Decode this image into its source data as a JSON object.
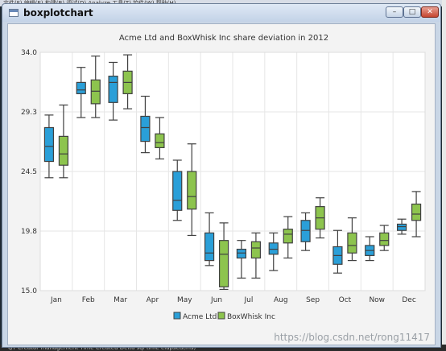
{
  "window": {
    "title": "boxplotchart",
    "buttons": {
      "minimize": "–",
      "maximize": "□",
      "close": "✕"
    }
  },
  "background": {
    "top_text": "文件(F)   编辑(E)   构建(B)   调试(D)   Analyze   工具(T)   控件(W)   帮助(H)",
    "bottom_text": "QT Creator management Time Created Delta sql time elapsed(ms)",
    "watermark": "https://blog.csdn.net/rong11417"
  },
  "colors": {
    "acme": "#2a9fd8",
    "boxwhisk": "#8dc44e",
    "outline": "#404040",
    "grid": "#e6e6e6",
    "plot_bg": "#ffffff"
  },
  "chart_data": {
    "type": "boxplot",
    "title": "Acme Ltd and BoxWhisk Inc share deviation in 2012",
    "categories": [
      "Jan",
      "Feb",
      "Mar",
      "Apr",
      "May",
      "Jun",
      "Jul",
      "Aug",
      "Sep",
      "Oct",
      "Now",
      "Dec"
    ],
    "ylim": [
      15.0,
      34.0
    ],
    "yticks": [
      "34.0",
      "29.3",
      "24.5",
      "19.8",
      "15.0"
    ],
    "grid": true,
    "legend_position": "bottom",
    "series": [
      {
        "name": "Acme Ltd",
        "color": "#2a9fd8",
        "boxes": [
          {
            "min": 24.0,
            "q1": 25.3,
            "median": 26.5,
            "q3": 28.0,
            "max": 29.0
          },
          {
            "min": 28.8,
            "q1": 30.7,
            "median": 31.0,
            "q3": 31.6,
            "max": 32.8
          },
          {
            "min": 28.6,
            "q1": 30.0,
            "median": 31.6,
            "q3": 32.1,
            "max": 33.2
          },
          {
            "min": 26.0,
            "q1": 26.9,
            "median": 28.0,
            "q3": 28.9,
            "max": 30.5
          },
          {
            "min": 20.6,
            "q1": 21.4,
            "median": 22.2,
            "q3": 24.5,
            "max": 25.4
          },
          {
            "min": 17.0,
            "q1": 17.4,
            "median": 18.0,
            "q3": 19.6,
            "max": 21.2
          },
          {
            "min": 16.0,
            "q1": 17.6,
            "median": 18.0,
            "q3": 18.3,
            "max": 19.0
          },
          {
            "min": 16.6,
            "q1": 17.9,
            "median": 18.3,
            "q3": 18.8,
            "max": 19.6
          },
          {
            "min": 18.2,
            "q1": 18.9,
            "median": 19.8,
            "q3": 20.6,
            "max": 21.2
          },
          {
            "min": 16.4,
            "q1": 17.1,
            "median": 17.8,
            "q3": 18.5,
            "max": 19.8
          },
          {
            "min": 17.4,
            "q1": 17.8,
            "median": 18.2,
            "q3": 18.6,
            "max": 19.3
          },
          {
            "min": 19.5,
            "q1": 19.8,
            "median": 20.1,
            "q3": 20.3,
            "max": 20.7
          }
        ]
      },
      {
        "name": "BoxWhisk Inc",
        "color": "#8dc44e",
        "boxes": [
          {
            "min": 24.0,
            "q1": 25.0,
            "median": 25.9,
            "q3": 27.3,
            "max": 29.8
          },
          {
            "min": 28.8,
            "q1": 29.9,
            "median": 30.9,
            "q3": 31.8,
            "max": 33.7
          },
          {
            "min": 29.5,
            "q1": 30.7,
            "median": 31.6,
            "q3": 32.5,
            "max": 33.8
          },
          {
            "min": 25.5,
            "q1": 26.4,
            "median": 26.8,
            "q3": 27.5,
            "max": 28.8
          },
          {
            "min": 19.4,
            "q1": 21.5,
            "median": 22.5,
            "q3": 24.5,
            "max": 26.7
          },
          {
            "min": 15.1,
            "q1": 15.3,
            "median": 17.9,
            "q3": 19.0,
            "max": 20.4
          },
          {
            "min": 16.0,
            "q1": 17.6,
            "median": 18.4,
            "q3": 18.9,
            "max": 19.6
          },
          {
            "min": 17.6,
            "q1": 18.8,
            "median": 19.5,
            "q3": 19.9,
            "max": 20.9
          },
          {
            "min": 19.2,
            "q1": 19.9,
            "median": 20.8,
            "q3": 21.7,
            "max": 22.4
          },
          {
            "min": 17.4,
            "q1": 18.0,
            "median": 18.6,
            "q3": 19.6,
            "max": 20.8
          },
          {
            "min": 18.2,
            "q1": 18.6,
            "median": 19.0,
            "q3": 19.6,
            "max": 20.2
          },
          {
            "min": 19.3,
            "q1": 20.6,
            "median": 21.1,
            "q3": 21.9,
            "max": 22.9
          }
        ]
      }
    ]
  }
}
